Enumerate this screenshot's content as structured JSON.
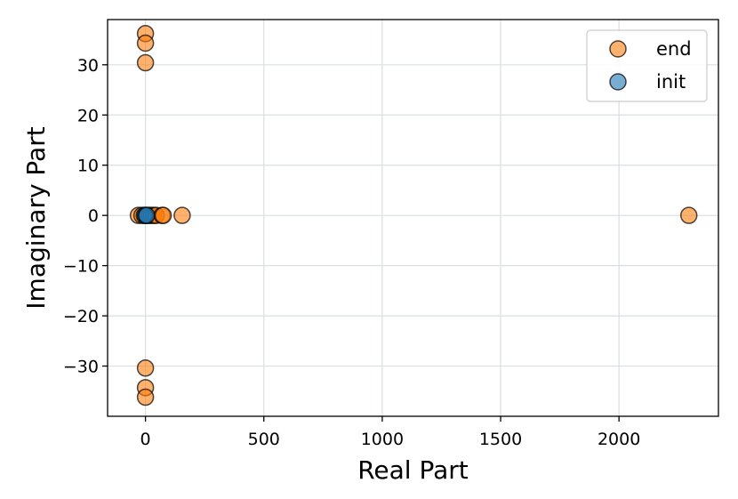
{
  "chart_data": {
    "type": "scatter",
    "title": "",
    "xlabel": "Real Part",
    "ylabel": "Imaginary Part",
    "xlim": [
      -160,
      2420
    ],
    "ylim": [
      -40,
      39
    ],
    "grid": true,
    "legend_placement": "top-right",
    "x_ticks": [
      0,
      500,
      1000,
      1500,
      2000
    ],
    "x_tick_labels": [
      "0",
      "500",
      "1000",
      "1500",
      "2000"
    ],
    "y_ticks": [
      -30,
      -20,
      -10,
      0,
      10,
      20,
      30
    ],
    "y_tick_labels": [
      "−30",
      "−20",
      "−10",
      "0",
      "10",
      "20",
      "30"
    ],
    "series": [
      {
        "name": "end",
        "color": "#ff7f0e",
        "points": [
          {
            "x": 0,
            "y": 36.2
          },
          {
            "x": 0,
            "y": 34.3
          },
          {
            "x": 0,
            "y": 30.4
          },
          {
            "x": 0,
            "y": -30.4
          },
          {
            "x": 0,
            "y": -34.3
          },
          {
            "x": 0,
            "y": -36.2
          },
          {
            "x": -30,
            "y": 0
          },
          {
            "x": -15,
            "y": 0
          },
          {
            "x": 5,
            "y": 0
          },
          {
            "x": 15,
            "y": 0
          },
          {
            "x": 25,
            "y": 0
          },
          {
            "x": 35,
            "y": 0
          },
          {
            "x": 45,
            "y": 0
          },
          {
            "x": 70,
            "y": 0
          },
          {
            "x": 75,
            "y": 0
          },
          {
            "x": 155,
            "y": 0
          },
          {
            "x": 2295,
            "y": 0
          }
        ]
      },
      {
        "name": "init",
        "color": "#1f77b4",
        "points": [
          {
            "x": -5,
            "y": 0
          },
          {
            "x": 0,
            "y": 0
          },
          {
            "x": 5,
            "y": 0
          }
        ]
      }
    ]
  }
}
